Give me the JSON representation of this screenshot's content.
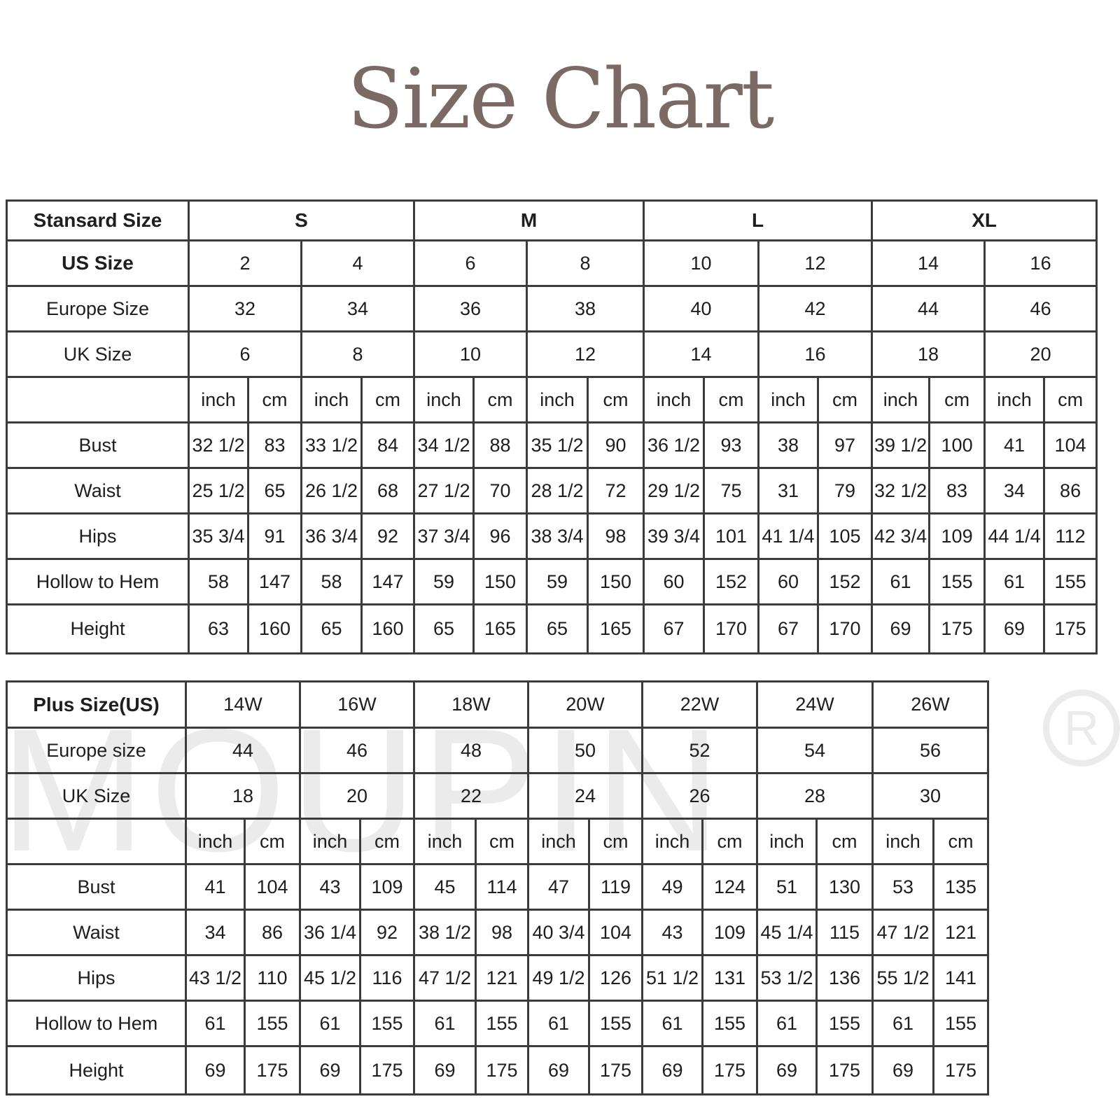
{
  "title": "Size Chart",
  "watermark": "MOUPIN ®",
  "standard": {
    "header_label": "Stansard Size",
    "groups": [
      "S",
      "M",
      "L",
      "XL"
    ],
    "size_rows": [
      {
        "label": "US Size",
        "values": [
          "2",
          "4",
          "6",
          "8",
          "10",
          "12",
          "14",
          "16"
        ]
      },
      {
        "label": "Europe Size",
        "values": [
          "32",
          "34",
          "36",
          "38",
          "40",
          "42",
          "44",
          "46"
        ]
      },
      {
        "label": "UK Size",
        "values": [
          "6",
          "8",
          "10",
          "12",
          "14",
          "16",
          "18",
          "20"
        ]
      }
    ],
    "units": [
      "inch",
      "cm"
    ],
    "measure_rows": [
      {
        "label": "Bust",
        "values": [
          "32 1/2",
          "83",
          "33 1/2",
          "84",
          "34 1/2",
          "88",
          "35 1/2",
          "90",
          "36 1/2",
          "93",
          "38",
          "97",
          "39 1/2",
          "100",
          "41",
          "104"
        ]
      },
      {
        "label": "Waist",
        "values": [
          "25 1/2",
          "65",
          "26 1/2",
          "68",
          "27 1/2",
          "70",
          "28 1/2",
          "72",
          "29 1/2",
          "75",
          "31",
          "79",
          "32 1/2",
          "83",
          "34",
          "86"
        ]
      },
      {
        "label": "Hips",
        "values": [
          "35 3/4",
          "91",
          "36 3/4",
          "92",
          "37 3/4",
          "96",
          "38 3/4",
          "98",
          "39 3/4",
          "101",
          "41 1/4",
          "105",
          "42 3/4",
          "109",
          "44 1/4",
          "112"
        ]
      },
      {
        "label": "Hollow to Hem",
        "values": [
          "58",
          "147",
          "58",
          "147",
          "59",
          "150",
          "59",
          "150",
          "60",
          "152",
          "60",
          "152",
          "61",
          "155",
          "61",
          "155"
        ]
      },
      {
        "label": "Height",
        "values": [
          "63",
          "160",
          "65",
          "160",
          "65",
          "165",
          "65",
          "165",
          "67",
          "170",
          "67",
          "170",
          "69",
          "175",
          "69",
          "175"
        ]
      }
    ]
  },
  "plus": {
    "header_label": "Plus Size(US)",
    "groups": [
      "14W",
      "16W",
      "18W",
      "20W",
      "22W",
      "24W",
      "26W"
    ],
    "size_rows": [
      {
        "label": "Europe size",
        "values": [
          "44",
          "46",
          "48",
          "50",
          "52",
          "54",
          "56"
        ]
      },
      {
        "label": "UK Size",
        "values": [
          "18",
          "20",
          "22",
          "24",
          "26",
          "28",
          "30"
        ]
      }
    ],
    "units": [
      "inch",
      "cm"
    ],
    "measure_rows": [
      {
        "label": "Bust",
        "values": [
          "41",
          "104",
          "43",
          "109",
          "45",
          "114",
          "47",
          "119",
          "49",
          "124",
          "51",
          "130",
          "53",
          "135"
        ]
      },
      {
        "label": "Waist",
        "values": [
          "34",
          "86",
          "36 1/4",
          "92",
          "38 1/2",
          "98",
          "40 3/4",
          "104",
          "43",
          "109",
          "45 1/4",
          "115",
          "47 1/2",
          "121"
        ]
      },
      {
        "label": "Hips",
        "values": [
          "43 1/2",
          "110",
          "45 1/2",
          "116",
          "47 1/2",
          "121",
          "49 1/2",
          "126",
          "51 1/2",
          "131",
          "53 1/2",
          "136",
          "55 1/2",
          "141"
        ]
      },
      {
        "label": "Hollow to Hem",
        "values": [
          "61",
          "155",
          "61",
          "155",
          "61",
          "155",
          "61",
          "155",
          "61",
          "155",
          "61",
          "155",
          "61",
          "155"
        ]
      },
      {
        "label": "Height",
        "values": [
          "69",
          "175",
          "69",
          "175",
          "69",
          "175",
          "69",
          "175",
          "69",
          "175",
          "69",
          "175",
          "69",
          "175"
        ]
      }
    ]
  }
}
